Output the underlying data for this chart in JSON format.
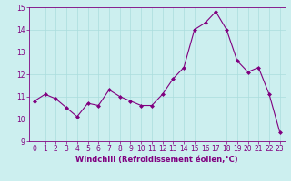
{
  "x": [
    0,
    1,
    2,
    3,
    4,
    5,
    6,
    7,
    8,
    9,
    10,
    11,
    12,
    13,
    14,
    15,
    16,
    17,
    18,
    19,
    20,
    21,
    22,
    23
  ],
  "y": [
    10.8,
    11.1,
    10.9,
    10.5,
    10.1,
    10.7,
    10.6,
    11.3,
    11.0,
    10.8,
    10.6,
    10.6,
    11.1,
    11.8,
    12.3,
    14.0,
    14.3,
    14.8,
    14.0,
    12.6,
    12.1,
    12.3,
    11.1,
    9.4
  ],
  "line_color": "#800080",
  "marker_color": "#800080",
  "bg_color": "#ccefef",
  "grid_color": "#aadddd",
  "xlabel": "Windchill (Refroidissement éolien,°C)",
  "xlabel_color": "#800080",
  "tick_color": "#800080",
  "ylim": [
    9,
    15
  ],
  "xlim": [
    -0.5,
    23.5
  ],
  "yticks": [
    9,
    10,
    11,
    12,
    13,
    14,
    15
  ],
  "xticks": [
    0,
    1,
    2,
    3,
    4,
    5,
    6,
    7,
    8,
    9,
    10,
    11,
    12,
    13,
    14,
    15,
    16,
    17,
    18,
    19,
    20,
    21,
    22,
    23
  ],
  "font_size": 5.5,
  "label_font_size": 6.0,
  "marker_size": 2.0,
  "line_width": 0.8
}
